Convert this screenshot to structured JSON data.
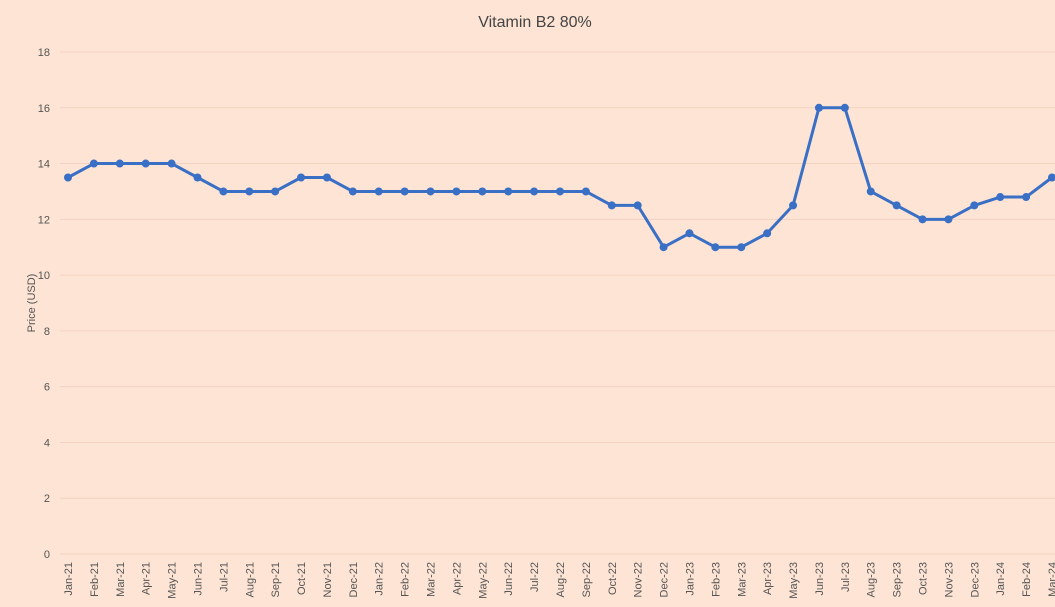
{
  "chart_data": {
    "type": "line",
    "title": "Vitamin B2 80%",
    "y_label": "Price (USD)",
    "categories": [
      "Jan-21",
      "Feb-21",
      "Mar-21",
      "Apr-21",
      "May-21",
      "Jun-21",
      "Jul-21",
      "Aug-21",
      "Sep-21",
      "Oct-21",
      "Nov-21",
      "Dec-21",
      "Jan-22",
      "Feb-22",
      "Mar-22",
      "Apr-22",
      "May-22",
      "Jun-22",
      "Jul-22",
      "Aug-22",
      "Sep-22",
      "Oct-22",
      "Nov-22",
      "Dec-22",
      "Jan-23",
      "Feb-23",
      "Mar-23",
      "Apr-23",
      "May-23",
      "Jun-23",
      "Jul-23",
      "Aug-23",
      "Sep-23",
      "Oct-23",
      "Nov-23",
      "Dec-23",
      "Jan-24",
      "Feb-24",
      "Mar-24"
    ],
    "series": [
      {
        "name": "Vitamin B2 80%",
        "color": "#3a6fc6",
        "values": [
          13.5,
          14,
          14,
          14,
          14,
          13.5,
          13,
          13,
          13,
          13.5,
          13.5,
          13,
          13,
          13,
          13,
          13,
          13,
          13,
          13,
          13,
          13,
          12.5,
          12.5,
          11,
          11.5,
          11,
          11,
          11.5,
          12.5,
          16,
          16,
          13,
          12.5,
          12,
          12,
          12.5,
          12.8,
          12.8,
          13.5
        ]
      }
    ],
    "ylim": [
      0,
      18
    ],
    "yticks": [
      0,
      2,
      4,
      6,
      8,
      10,
      12,
      14,
      16,
      18
    ],
    "grid": true
  }
}
